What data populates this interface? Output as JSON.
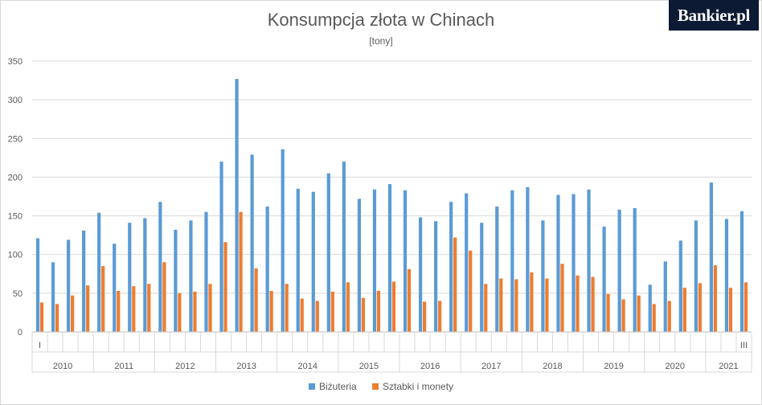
{
  "branding": {
    "logo_text": "Bankier.pl"
  },
  "chart_data": {
    "type": "bar",
    "title": "Konsumpcja złota w Chinach",
    "subtitle": "[tony]",
    "ylim": [
      0,
      350
    ],
    "yticks": [
      0,
      50,
      100,
      150,
      200,
      250,
      300,
      350
    ],
    "grid": true,
    "legend_position": "bottom",
    "years": [
      "2010",
      "2011",
      "2012",
      "2013",
      "2014",
      "2015",
      "2016",
      "2017",
      "2018",
      "2019",
      "2020",
      "2021"
    ],
    "first_quarter_label": "I",
    "last_quarter_label": "III",
    "series": [
      {
        "name": "Biżuteria",
        "color": "#5b9bd5",
        "values": [
          121,
          90,
          119,
          131,
          154,
          114,
          141,
          147,
          168,
          132,
          144,
          155,
          220,
          327,
          229,
          162,
          236,
          185,
          181,
          205,
          220,
          172,
          184,
          191,
          183,
          148,
          143,
          168,
          179,
          141,
          162,
          183,
          187,
          144,
          177,
          178,
          184,
          136,
          158,
          160,
          61,
          91,
          118,
          144,
          193,
          146,
          156
        ]
      },
      {
        "name": "Sztabki i monety",
        "color": "#ed7d31",
        "values": [
          38,
          36,
          47,
          60,
          85,
          53,
          59,
          62,
          90,
          50,
          52,
          62,
          116,
          155,
          82,
          53,
          62,
          43,
          40,
          52,
          64,
          44,
          53,
          65,
          81,
          39,
          40,
          122,
          105,
          62,
          69,
          68,
          77,
          69,
          88,
          73,
          71,
          49,
          42,
          47,
          36,
          40,
          57,
          63,
          86,
          57,
          64
        ]
      }
    ]
  }
}
